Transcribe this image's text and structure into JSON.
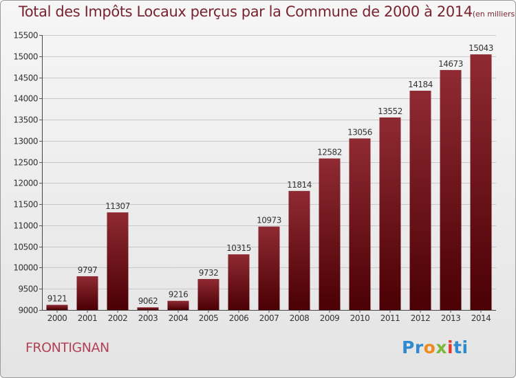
{
  "header": {
    "title": "Total des Impôts Locaux perçus par la Commune de 2000 à 2014",
    "unit": "(en milliers d'€)"
  },
  "commune": "FRONTIGNAN",
  "logo": {
    "letters": [
      "P",
      "r",
      "o",
      "x",
      "i",
      "ti"
    ]
  },
  "colors": {
    "bar_top": "#8f2a32",
    "bar_bottom": "#4a0004",
    "title": "#7a2330",
    "commune": "#b44256"
  },
  "chart_data": {
    "type": "bar",
    "categories": [
      "2000",
      "2001",
      "2002",
      "2003",
      "2004",
      "2005",
      "2006",
      "2007",
      "2008",
      "2009",
      "2010",
      "2011",
      "2012",
      "2013",
      "2014"
    ],
    "values": [
      9121,
      9797,
      11307,
      9062,
      9216,
      9732,
      10315,
      10973,
      11814,
      12582,
      13056,
      13552,
      14184,
      14673,
      15043
    ],
    "ylim": [
      9000,
      15500
    ],
    "yticks": [
      9000,
      9500,
      10000,
      10500,
      11000,
      11500,
      12000,
      12500,
      13000,
      13500,
      14000,
      14500,
      15000,
      15500
    ],
    "grid": true,
    "data_labels": true
  }
}
